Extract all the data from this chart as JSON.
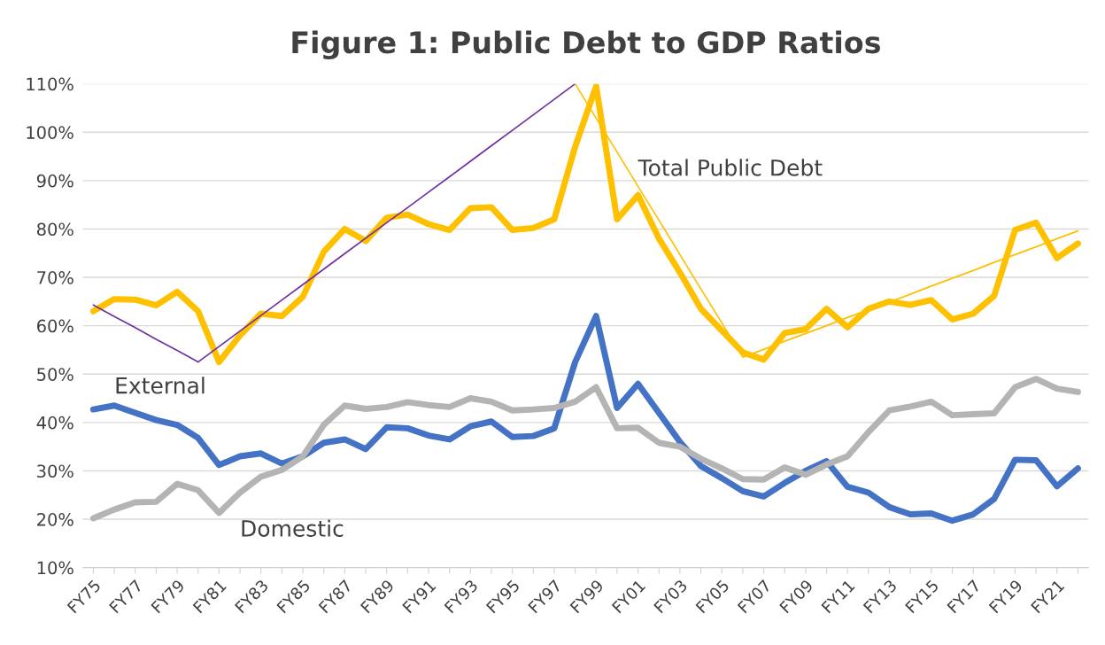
{
  "chart_data": {
    "type": "line",
    "title": "Figure 1: Public Debt to GDP Ratios",
    "categories": [
      "FY75",
      null,
      "FY77",
      null,
      "FY79",
      null,
      "FY81",
      null,
      "FY83",
      null,
      "FY85",
      null,
      "FY87",
      null,
      "FY89",
      null,
      "FY91",
      null,
      "FY93",
      null,
      "FY95",
      null,
      "FY97",
      null,
      "FY99",
      null,
      "FY01",
      null,
      "FY03",
      null,
      "FY05",
      null,
      "FY07",
      null,
      "FY09",
      null,
      "FY11",
      null,
      "FY13",
      null,
      "FY15",
      null,
      "FY17",
      null,
      "FY19",
      null,
      "FY21",
      null
    ],
    "series": [
      {
        "name": "Total Public Debt",
        "color": "#ffc000",
        "values": [
          63,
          65.5,
          65.4,
          64.2,
          67,
          63,
          52.5,
          58,
          62.5,
          62,
          66,
          75.3,
          80,
          77.5,
          82.3,
          83,
          81,
          79.8,
          84.3,
          84.5,
          79.8,
          80.2,
          82,
          97,
          109.5,
          82,
          87,
          78,
          71,
          63.5,
          59,
          54.5,
          53,
          58.5,
          59.3,
          63.5,
          59.7,
          63.5,
          65,
          64.3,
          65.3,
          61.3,
          62.5,
          66.2,
          79.8,
          81.3,
          74,
          77
        ]
      },
      {
        "name": "External",
        "color": "#4472c4",
        "values": [
          42.7,
          43.5,
          42,
          40.5,
          39.5,
          36.8,
          31.2,
          33,
          33.6,
          31.5,
          33,
          35.8,
          36.5,
          34.5,
          39,
          38.8,
          37.3,
          36.5,
          39.2,
          40.2,
          37,
          37.2,
          38.8,
          52.5,
          62,
          43,
          48,
          42,
          36,
          31,
          28.5,
          25.8,
          24.7,
          27.5,
          30,
          32,
          26.7,
          25.5,
          22.5,
          21,
          21.2,
          19.7,
          21,
          24.2,
          32.3,
          32.2,
          26.8,
          30.5
        ]
      },
      {
        "name": "Domestic",
        "color": "#b4b4b4",
        "values": [
          20.2,
          22,
          23.5,
          23.6,
          27.3,
          26,
          21.3,
          25.5,
          28.8,
          30.2,
          33,
          39.5,
          43.5,
          42.8,
          43.2,
          44.2,
          43.6,
          43.2,
          45,
          44.3,
          42.5,
          42.7,
          43,
          44.3,
          47.3,
          38.8,
          38.9,
          35.8,
          35,
          32.5,
          30.5,
          28.3,
          28.2,
          30.7,
          29.2,
          31.3,
          33,
          38,
          42.5,
          43.3,
          44.3,
          41.5,
          41.7,
          41.9,
          47.3,
          49,
          47,
          46.3
        ]
      },
      {
        "type": "line",
        "color": "#7030a0",
        "values": [
          64.3,
          61.9,
          59.6,
          57.2,
          54.9,
          52.5,
          55.7,
          58.9,
          62.1,
          65.3,
          68.5,
          71.7,
          74.9,
          78.1,
          81.3,
          84.4,
          87.6,
          90.8,
          94.0,
          97.2,
          100.4,
          103.6,
          106.8,
          110,
          null,
          null,
          null,
          null,
          null,
          null,
          null,
          null,
          null,
          null,
          null,
          null,
          null,
          null,
          null,
          null,
          null,
          null,
          null,
          null,
          null,
          null,
          null,
          null
        ]
      },
      {
        "type": "line",
        "color": "#ffc000",
        "values": [
          null,
          null,
          null,
          null,
          null,
          null,
          null,
          null,
          null,
          null,
          null,
          null,
          null,
          null,
          null,
          null,
          null,
          null,
          null,
          null,
          null,
          null,
          null,
          110,
          102.9,
          95.9,
          88.8,
          81.8,
          74.7,
          67.6,
          60.6,
          53.5,
          55.1,
          56.8,
          58.4,
          60.0,
          61.7,
          63.3,
          64.9,
          66.5,
          68.2,
          69.8,
          71.4,
          73.1,
          74.7,
          76.3,
          78.0,
          79.6
        ]
      }
    ],
    "ylim": [
      10,
      110
    ],
    "yticks": [
      {
        "value": 10,
        "label": "10%"
      },
      {
        "value": 20,
        "label": "20%"
      },
      {
        "value": 30,
        "label": "30%"
      },
      {
        "value": 40,
        "label": "40%"
      },
      {
        "value": 50,
        "label": "50%"
      },
      {
        "value": 60,
        "label": "60%"
      },
      {
        "value": 70,
        "label": "70%"
      },
      {
        "value": 80,
        "label": "80%"
      },
      {
        "value": 90,
        "label": "90%"
      },
      {
        "value": 100,
        "label": "100%"
      },
      {
        "value": 110,
        "label": "110%"
      }
    ],
    "grid": "y",
    "legend": false
  }
}
